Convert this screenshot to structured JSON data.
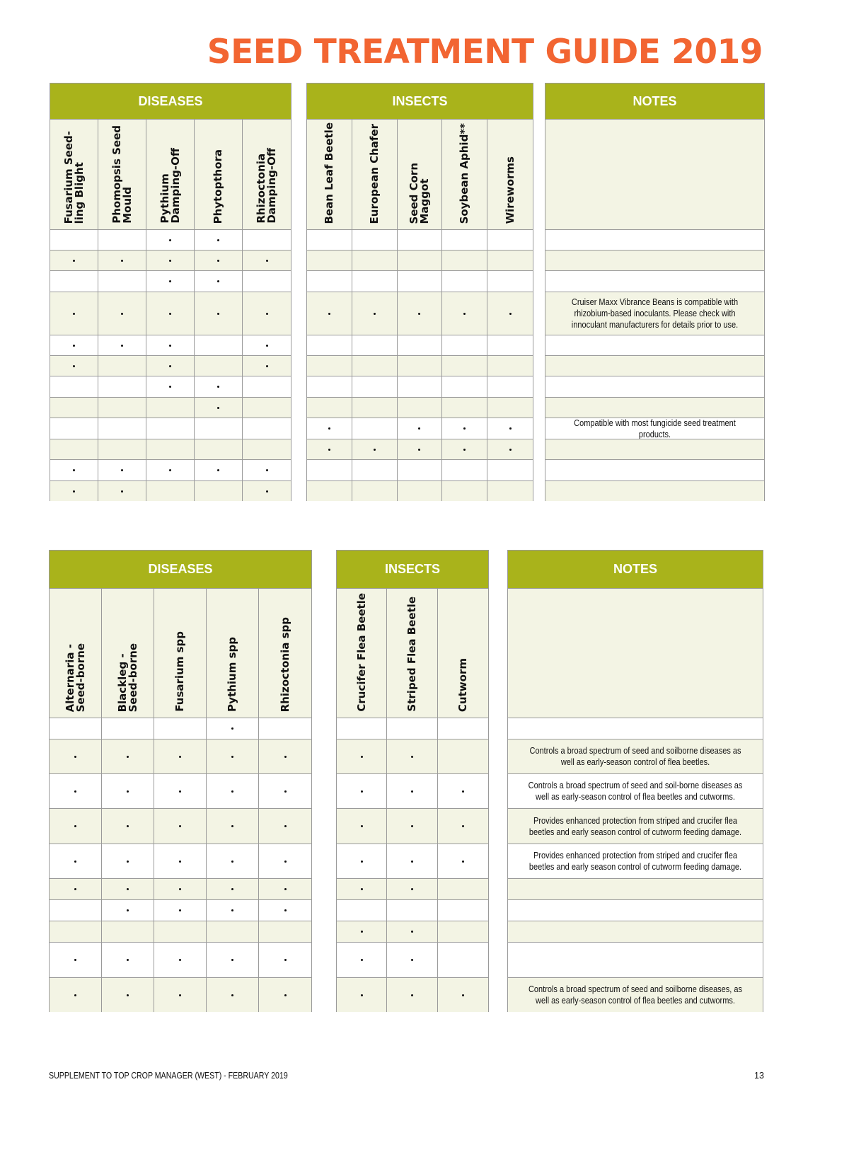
{
  "title": "SEED TREATMENT GUIDE 2019",
  "colors": {
    "title": "#f26532",
    "header": "#a9b31b",
    "row_alt": "#f3f4e4"
  },
  "top": {
    "diseases": {
      "label": "DISEASES",
      "columns": [
        "Fusarium Seed-\nling Blight",
        "Phomopsis Seed\nMould",
        "Pythium\nDamping-Off",
        "Phytopthora",
        "Rhizoctonia\nDamping-Off"
      ],
      "marks": [
        [
          0,
          0,
          1,
          1,
          0
        ],
        [
          1,
          1,
          1,
          1,
          1
        ],
        [
          0,
          0,
          1,
          1,
          0
        ],
        [
          1,
          1,
          1,
          1,
          1
        ],
        [
          1,
          1,
          1,
          0,
          1
        ],
        [
          1,
          0,
          1,
          0,
          1
        ],
        [
          0,
          0,
          1,
          1,
          0
        ],
        [
          0,
          0,
          0,
          1,
          0
        ],
        [
          0,
          0,
          0,
          0,
          0
        ],
        [
          0,
          0,
          0,
          0,
          0
        ],
        [
          1,
          1,
          1,
          1,
          1
        ],
        [
          1,
          1,
          0,
          0,
          1
        ]
      ]
    },
    "insects": {
      "label": "INSECTS",
      "columns": [
        "Bean Leaf Beetle",
        "European Chafer",
        "Seed Corn\nMaggot",
        "Soybean Aphid**",
        "Wireworms"
      ],
      "marks": [
        [
          0,
          0,
          0,
          0,
          0
        ],
        [
          0,
          0,
          0,
          0,
          0
        ],
        [
          0,
          0,
          0,
          0,
          0
        ],
        [
          1,
          1,
          1,
          1,
          1
        ],
        [
          0,
          0,
          0,
          0,
          0
        ],
        [
          0,
          0,
          0,
          0,
          0
        ],
        [
          0,
          0,
          0,
          0,
          0
        ],
        [
          0,
          0,
          0,
          0,
          0
        ],
        [
          1,
          0,
          1,
          1,
          1
        ],
        [
          1,
          1,
          1,
          1,
          1
        ],
        [
          0,
          0,
          0,
          0,
          0
        ],
        [
          0,
          0,
          0,
          0,
          0
        ]
      ]
    },
    "notes": {
      "label": "NOTES",
      "rows": [
        "",
        "",
        "",
        "Cruiser Maxx Vibrance Beans is compatible with rhizobium-based inoculants. Please check with innoculant manufacturers for details prior to use.",
        "",
        "",
        "",
        "",
        "Compatible with most fungicide seed treatment products.",
        "",
        "",
        ""
      ]
    }
  },
  "bottom": {
    "diseases": {
      "label": "DISEASES",
      "columns": [
        "Alternaria -\nSeed-borne",
        "Blackleg -\nSeed-borne",
        "Fusarium spp",
        "Pythium spp",
        "Rhizoctonia spp"
      ],
      "marks": [
        [
          0,
          0,
          0,
          1,
          0
        ],
        [
          1,
          1,
          1,
          1,
          1
        ],
        [
          1,
          1,
          1,
          1,
          1
        ],
        [
          1,
          1,
          1,
          1,
          1
        ],
        [
          1,
          1,
          1,
          1,
          1
        ],
        [
          1,
          1,
          1,
          1,
          1
        ],
        [
          0,
          1,
          1,
          1,
          1
        ],
        [
          0,
          0,
          0,
          0,
          0
        ],
        [
          1,
          1,
          1,
          1,
          1
        ],
        [
          1,
          1,
          1,
          1,
          1
        ]
      ]
    },
    "insects": {
      "label": "INSECTS",
      "columns": [
        "Crucifer Flea Beetle",
        "Striped Flea Beetle",
        "Cutworm"
      ],
      "marks": [
        [
          0,
          0,
          0
        ],
        [
          1,
          1,
          0
        ],
        [
          1,
          1,
          1
        ],
        [
          1,
          1,
          1
        ],
        [
          1,
          1,
          1
        ],
        [
          1,
          1,
          0
        ],
        [
          0,
          0,
          0
        ],
        [
          1,
          1,
          0
        ],
        [
          1,
          1,
          0
        ],
        [
          1,
          1,
          1
        ]
      ]
    },
    "notes": {
      "label": "NOTES",
      "rows": [
        "",
        "Controls a broad spectrum of seed and soilborne diseases as well as early-season control of flea beetles.",
        "Controls a broad spectrum of seed and soil-borne diseases as well as early-season control of flea beetles and cutworms.",
        "Provides enhanced protection from striped and crucifer flea beetles and early season control of cutworm feeding damage.",
        "Provides enhanced protection from striped and crucifer flea beetles and early season control of cutworm feeding damage.",
        "",
        "",
        "",
        "",
        "Controls a broad spectrum of seed and soilborne diseases, as well as early-season control of flea beetles and cutworms."
      ]
    }
  },
  "footer": {
    "left": "SUPPLEMENT TO TOP CROP MANAGER (WEST) - FEBRUARY 2019",
    "page": "13"
  }
}
